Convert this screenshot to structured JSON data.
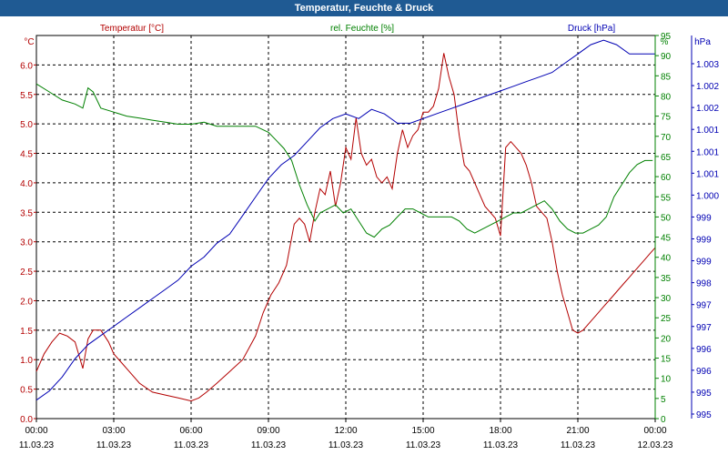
{
  "window": {
    "title": "Temperatur, Feuchte & Druck"
  },
  "chart_data": {
    "type": "line",
    "grid": true,
    "series_labels": {
      "temperature": "Temperatur [°C]",
      "humidity": "rel. Feuchte [%]",
      "pressure": "Druck [hPa]"
    },
    "colors": {
      "temperature": "#b30000",
      "humidity": "#008000",
      "pressure": "#0000b3",
      "grid": "#000000"
    },
    "axes": {
      "temperature": {
        "unit": "°C",
        "min": 0,
        "max": 6.5,
        "ticks": [
          "0.0",
          "0.5",
          "1.0",
          "1.5",
          "2.0",
          "2.5",
          "3.0",
          "3.5",
          "4.0",
          "4.5",
          "5.0",
          "5.5",
          "6.0"
        ]
      },
      "humidity": {
        "unit": "%",
        "min": 0,
        "max": 95,
        "ticks": [
          "0",
          "5",
          "10",
          "15",
          "20",
          "25",
          "30",
          "35",
          "40",
          "45",
          "50",
          "55",
          "60",
          "65",
          "70",
          "75",
          "80",
          "85",
          "90",
          "95"
        ]
      },
      "pressure": {
        "unit": "hPa",
        "min": 995,
        "max": 1003.3,
        "ticks": [
          "995",
          "995",
          "996",
          "996",
          "997",
          "997",
          "998",
          "999",
          "999",
          "999",
          "1.000",
          "1.001",
          "1.001",
          "1.001",
          "1.002",
          "1.002",
          "1.003"
        ]
      }
    },
    "x_ticks": [
      {
        "time": "00:00",
        "date": "11.03.23",
        "hour": 0
      },
      {
        "time": "03:00",
        "date": "11.03.23",
        "hour": 3
      },
      {
        "time": "06:00",
        "date": "11.03.23",
        "hour": 6
      },
      {
        "time": "09:00",
        "date": "11.03.23",
        "hour": 9
      },
      {
        "time": "12:00",
        "date": "11.03.23",
        "hour": 12
      },
      {
        "time": "15:00",
        "date": "11.03.23",
        "hour": 15
      },
      {
        "time": "18:00",
        "date": "11.03.23",
        "hour": 18
      },
      {
        "time": "21:00",
        "date": "11.03.23",
        "hour": 21
      },
      {
        "time": "00:00",
        "date": "12.03.23",
        "hour": 24
      }
    ],
    "x_range": [
      0,
      24
    ],
    "series": [
      {
        "name": "Temperatur",
        "key": "temperature",
        "x": [
          0,
          0.3,
          0.6,
          0.9,
          1.2,
          1.5,
          1.8,
          1.9,
          2.0,
          2.2,
          2.5,
          2.8,
          3.0,
          3.3,
          3.6,
          4.0,
          4.5,
          5.0,
          5.5,
          6.0,
          6.3,
          6.6,
          7.0,
          7.5,
          8.0,
          8.5,
          8.8,
          9.1,
          9.4,
          9.7,
          10.0,
          10.2,
          10.4,
          10.6,
          10.8,
          11.0,
          11.2,
          11.4,
          11.6,
          11.8,
          12.0,
          12.2,
          12.4,
          12.6,
          12.8,
          13.0,
          13.2,
          13.4,
          13.6,
          13.8,
          14.0,
          14.2,
          14.4,
          14.6,
          14.8,
          15.0,
          15.2,
          15.4,
          15.6,
          15.8,
          16.0,
          16.2,
          16.4,
          16.6,
          16.8,
          17.0,
          17.2,
          17.4,
          17.6,
          17.8,
          18.0,
          18.2,
          18.4,
          18.6,
          18.8,
          19.0,
          19.2,
          19.4,
          19.6,
          19.8,
          20.0,
          20.2,
          20.4,
          20.6,
          20.8,
          21.0,
          21.2,
          21.4,
          21.6,
          21.8,
          22.0,
          22.2,
          22.4,
          22.6,
          22.8,
          23.0,
          23.2,
          23.4,
          23.6,
          23.8,
          24.0
        ],
        "values": [
          0.8,
          1.1,
          1.3,
          1.45,
          1.4,
          1.3,
          0.85,
          1.1,
          1.35,
          1.5,
          1.5,
          1.3,
          1.1,
          0.95,
          0.8,
          0.6,
          0.45,
          0.4,
          0.35,
          0.3,
          0.35,
          0.45,
          0.6,
          0.8,
          1.0,
          1.4,
          1.8,
          2.1,
          2.3,
          2.6,
          3.3,
          3.4,
          3.3,
          3.0,
          3.5,
          3.9,
          3.8,
          4.2,
          3.6,
          4.0,
          4.6,
          4.4,
          5.1,
          4.5,
          4.3,
          4.4,
          4.1,
          4.0,
          4.1,
          3.9,
          4.5,
          4.9,
          4.6,
          4.8,
          4.9,
          5.2,
          5.2,
          5.3,
          5.6,
          6.2,
          5.8,
          5.5,
          4.8,
          4.3,
          4.2,
          4.0,
          3.8,
          3.6,
          3.5,
          3.4,
          3.1,
          4.6,
          4.7,
          4.6,
          4.5,
          4.3,
          4.0,
          3.6,
          3.5,
          3.4,
          3.0,
          2.5,
          2.1,
          1.8,
          1.5,
          1.45,
          1.5,
          1.6,
          1.7,
          1.8,
          1.9,
          2.0,
          2.1,
          2.2,
          2.3,
          2.4,
          2.5,
          2.6,
          2.7,
          2.8,
          2.9
        ]
      },
      {
        "name": "rel. Feuchte",
        "key": "humidity",
        "x": [
          0,
          0.5,
          1.0,
          1.5,
          1.8,
          2.0,
          2.2,
          2.5,
          3.0,
          3.5,
          4.0,
          4.5,
          5.0,
          5.5,
          6.0,
          6.5,
          7.0,
          7.5,
          8.0,
          8.5,
          9.0,
          9.3,
          9.6,
          9.9,
          10.2,
          10.5,
          10.8,
          11.0,
          11.3,
          11.6,
          11.9,
          12.2,
          12.5,
          12.8,
          13.1,
          13.4,
          13.7,
          14.0,
          14.3,
          14.6,
          14.9,
          15.2,
          15.5,
          15.8,
          16.1,
          16.4,
          16.7,
          17.0,
          17.3,
          17.6,
          17.9,
          18.2,
          18.5,
          18.8,
          19.1,
          19.4,
          19.7,
          20.0,
          20.3,
          20.6,
          20.9,
          21.2,
          21.5,
          21.8,
          22.1,
          22.4,
          22.7,
          23.0,
          23.3,
          23.6,
          23.9
        ],
        "values": [
          83,
          81,
          79,
          78,
          77,
          82,
          81,
          77,
          76,
          75,
          74.5,
          74,
          73.5,
          73,
          73,
          73.5,
          72.5,
          72.5,
          72.5,
          72.5,
          71,
          69,
          67,
          64,
          58,
          53,
          49,
          51,
          52,
          53,
          51,
          52,
          49,
          46,
          45,
          47,
          48,
          50,
          52,
          52,
          51,
          50,
          50,
          50,
          50,
          49,
          47,
          46,
          47,
          48,
          49,
          50,
          51,
          51,
          52,
          53,
          54,
          52,
          49,
          47,
          46,
          46,
          47,
          48,
          50,
          55,
          58,
          61,
          63,
          64,
          64
        ]
      },
      {
        "name": "Druck",
        "key": "pressure",
        "x": [
          0,
          0.5,
          1.0,
          1.5,
          2.0,
          2.5,
          3.0,
          3.5,
          4.0,
          4.5,
          5.0,
          5.5,
          6.0,
          6.5,
          7.0,
          7.5,
          8.0,
          8.5,
          9.0,
          9.5,
          10.0,
          10.5,
          11.0,
          11.5,
          12.0,
          12.5,
          13.0,
          13.5,
          14.0,
          14.5,
          15.0,
          15.5,
          16.0,
          16.5,
          17.0,
          17.5,
          18.0,
          18.5,
          19.0,
          19.5,
          20.0,
          20.5,
          21.0,
          21.5,
          22.0,
          22.5,
          23.0,
          23.5,
          24.0
        ],
        "values": [
          995.4,
          995.6,
          995.9,
          996.3,
          996.6,
          996.8,
          997.0,
          997.2,
          997.4,
          997.6,
          997.8,
          998.0,
          998.3,
          998.5,
          998.8,
          999.0,
          999.4,
          999.8,
          1000.2,
          1000.5,
          1000.7,
          1001.0,
          1001.3,
          1001.5,
          1001.6,
          1001.5,
          1001.7,
          1001.6,
          1001.4,
          1001.4,
          1001.5,
          1001.6,
          1001.7,
          1001.8,
          1001.9,
          1002.0,
          1002.1,
          1002.2,
          1002.3,
          1002.4,
          1002.5,
          1002.7,
          1002.9,
          1003.1,
          1003.2,
          1003.1,
          1002.9,
          1002.9,
          1002.9
        ]
      }
    ]
  }
}
